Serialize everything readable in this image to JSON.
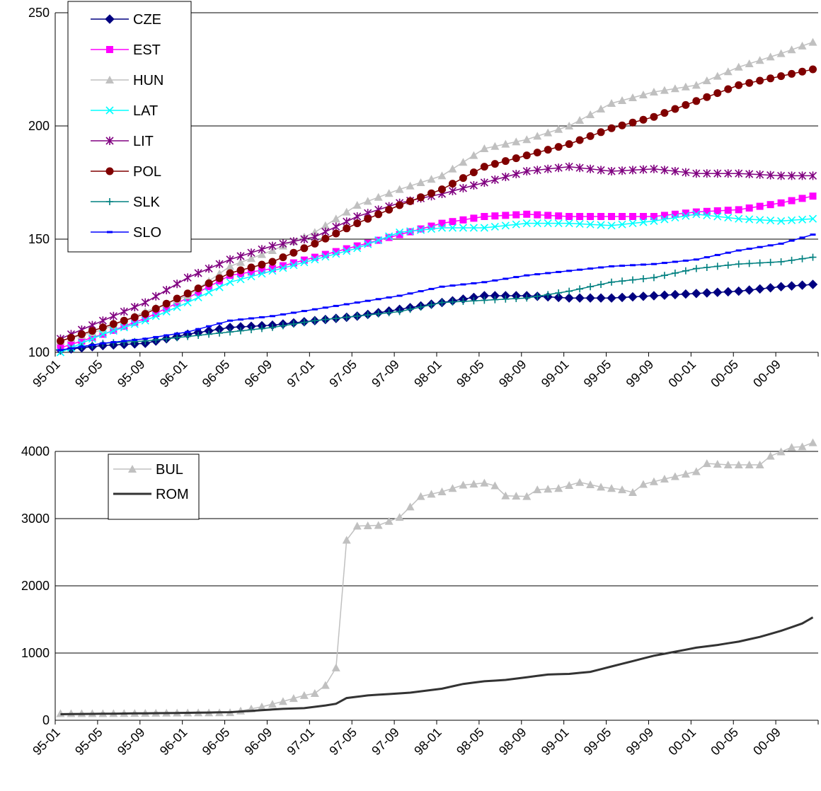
{
  "chart_data": [
    {
      "type": "line",
      "title": "",
      "xlabel": "",
      "ylabel": "",
      "ylim": [
        100,
        250
      ],
      "yticks": [
        100,
        150,
        200,
        250
      ],
      "xtick_labels": [
        "95-01",
        "95-05",
        "95-09",
        "96-01",
        "96-05",
        "96-09",
        "97-01",
        "97-05",
        "97-09",
        "98-01",
        "98-05",
        "98-09",
        "99-01",
        "99-05",
        "99-09",
        "00-01",
        "00-05",
        "00-09"
      ],
      "x_start": "1995-01",
      "x_end": "2000-12",
      "grid": "horizontal",
      "legend_position": "top-left",
      "series": [
        {
          "name": "CZE",
          "color": "#000080",
          "marker": "diamond",
          "anchors": [
            [
              0,
              101
            ],
            [
              4,
              103
            ],
            [
              8,
              104
            ],
            [
              12,
              108
            ],
            [
              16,
              111
            ],
            [
              20,
              112
            ],
            [
              24,
              114
            ],
            [
              28,
              116
            ],
            [
              32,
              119
            ],
            [
              36,
              122
            ],
            [
              40,
              125
            ],
            [
              44,
              125
            ],
            [
              48,
              124
            ],
            [
              52,
              124
            ],
            [
              56,
              125
            ],
            [
              60,
              126
            ],
            [
              64,
              127
            ],
            [
              68,
              129
            ],
            [
              71,
              130
            ]
          ]
        },
        {
          "name": "EST",
          "color": "#FF00FF",
          "marker": "square",
          "anchors": [
            [
              0,
              102
            ],
            [
              4,
              108
            ],
            [
              8,
              115
            ],
            [
              12,
              124
            ],
            [
              16,
              134
            ],
            [
              20,
              137
            ],
            [
              24,
              142
            ],
            [
              28,
              147
            ],
            [
              32,
              152
            ],
            [
              36,
              157
            ],
            [
              40,
              160
            ],
            [
              44,
              161
            ],
            [
              48,
              160
            ],
            [
              52,
              160
            ],
            [
              56,
              160
            ],
            [
              60,
              162
            ],
            [
              64,
              163
            ],
            [
              68,
              166
            ],
            [
              71,
              169
            ]
          ]
        },
        {
          "name": "HUN",
          "color": "#C0C0C0",
          "marker": "triangle",
          "anchors": [
            [
              0,
              105
            ],
            [
              4,
              110
            ],
            [
              8,
              118
            ],
            [
              12,
              125
            ],
            [
              16,
              138
            ],
            [
              20,
              145
            ],
            [
              24,
              153
            ],
            [
              28,
              165
            ],
            [
              32,
              172
            ],
            [
              36,
              178
            ],
            [
              40,
              190
            ],
            [
              44,
              194
            ],
            [
              48,
              200
            ],
            [
              52,
              210
            ],
            [
              56,
              215
            ],
            [
              60,
              218
            ],
            [
              64,
              226
            ],
            [
              68,
              232
            ],
            [
              71,
              237
            ]
          ]
        },
        {
          "name": "LAT",
          "color": "#00FFFF",
          "marker": "x",
          "anchors": [
            [
              0,
              100
            ],
            [
              4,
              108
            ],
            [
              8,
              114
            ],
            [
              12,
              122
            ],
            [
              16,
              131
            ],
            [
              20,
              136
            ],
            [
              24,
              141
            ],
            [
              28,
              146
            ],
            [
              32,
              153
            ],
            [
              36,
              155
            ],
            [
              40,
              155
            ],
            [
              44,
              157
            ],
            [
              48,
              157
            ],
            [
              52,
              156
            ],
            [
              56,
              158
            ],
            [
              60,
              161
            ],
            [
              64,
              159
            ],
            [
              68,
              158
            ],
            [
              71,
              159
            ]
          ]
        },
        {
          "name": "LIT",
          "color": "#800080",
          "marker": "star",
          "anchors": [
            [
              0,
              106
            ],
            [
              4,
              114
            ],
            [
              8,
              122
            ],
            [
              12,
              133
            ],
            [
              16,
              141
            ],
            [
              20,
              147
            ],
            [
              24,
              151
            ],
            [
              28,
              160
            ],
            [
              32,
              166
            ],
            [
              36,
              170
            ],
            [
              40,
              175
            ],
            [
              44,
              180
            ],
            [
              48,
              182
            ],
            [
              52,
              180
            ],
            [
              56,
              181
            ],
            [
              60,
              179
            ],
            [
              64,
              179
            ],
            [
              68,
              178
            ],
            [
              71,
              178
            ]
          ]
        },
        {
          "name": "POL",
          "color": "#800000",
          "marker": "circle",
          "anchors": [
            [
              0,
              105
            ],
            [
              4,
              111
            ],
            [
              8,
              117
            ],
            [
              12,
              126
            ],
            [
              16,
              135
            ],
            [
              20,
              140
            ],
            [
              24,
              148
            ],
            [
              28,
              157
            ],
            [
              32,
              165
            ],
            [
              36,
              172
            ],
            [
              40,
              182
            ],
            [
              44,
              187
            ],
            [
              48,
              192
            ],
            [
              52,
              199
            ],
            [
              56,
              204
            ],
            [
              60,
              211
            ],
            [
              64,
              218
            ],
            [
              68,
              222
            ],
            [
              71,
              225
            ]
          ]
        },
        {
          "name": "SLK",
          "color": "#008080",
          "marker": "plus",
          "anchors": [
            [
              0,
              101
            ],
            [
              4,
              104
            ],
            [
              8,
              105
            ],
            [
              12,
              107
            ],
            [
              16,
              109
            ],
            [
              20,
              111
            ],
            [
              24,
              114
            ],
            [
              28,
              116
            ],
            [
              32,
              118
            ],
            [
              36,
              122
            ],
            [
              40,
              123
            ],
            [
              44,
              124
            ],
            [
              48,
              127
            ],
            [
              52,
              131
            ],
            [
              56,
              133
            ],
            [
              60,
              137
            ],
            [
              64,
              139
            ],
            [
              68,
              140
            ],
            [
              71,
              142
            ]
          ]
        },
        {
          "name": "SLO",
          "color": "#0000FF",
          "marker": "dash",
          "anchors": [
            [
              0,
              101
            ],
            [
              4,
              104
            ],
            [
              8,
              106
            ],
            [
              12,
              109
            ],
            [
              16,
              114
            ],
            [
              20,
              116
            ],
            [
              24,
              119
            ],
            [
              28,
              122
            ],
            [
              32,
              125
            ],
            [
              36,
              129
            ],
            [
              40,
              131
            ],
            [
              44,
              134
            ],
            [
              48,
              136
            ],
            [
              52,
              138
            ],
            [
              56,
              139
            ],
            [
              60,
              141
            ],
            [
              64,
              145
            ],
            [
              68,
              148
            ],
            [
              71,
              152
            ]
          ]
        }
      ]
    },
    {
      "type": "line",
      "title": "",
      "xlabel": "",
      "ylabel": "",
      "ylim": [
        0,
        4000
      ],
      "yticks": [
        0,
        1000,
        2000,
        3000,
        4000
      ],
      "xtick_labels": [
        "95-01",
        "95-05",
        "95-09",
        "96-01",
        "96-05",
        "96-09",
        "97-01",
        "97-05",
        "97-09",
        "98-01",
        "98-05",
        "98-09",
        "99-01",
        "99-05",
        "99-09",
        "00-01",
        "00-05",
        "00-09"
      ],
      "x_start": "1995-01",
      "x_end": "2000-12",
      "grid": "horizontal",
      "legend_position": "top-left",
      "series": [
        {
          "name": "BUL",
          "color": "#C0C0C0",
          "marker": "triangle",
          "anchors": [
            [
              0,
              100
            ],
            [
              4,
              100
            ],
            [
              8,
              105
            ],
            [
              12,
              110
            ],
            [
              16,
              115
            ],
            [
              17,
              140
            ],
            [
              19,
              200
            ],
            [
              21,
              280
            ],
            [
              23,
              370
            ],
            [
              24,
              400
            ],
            [
              25,
              520
            ],
            [
              26,
              780
            ],
            [
              27,
              2680
            ],
            [
              28,
              2890
            ],
            [
              30,
              2900
            ],
            [
              32,
              3020
            ],
            [
              34,
              3330
            ],
            [
              36,
              3400
            ],
            [
              38,
              3500
            ],
            [
              40,
              3530
            ],
            [
              41,
              3490
            ],
            [
              42,
              3340
            ],
            [
              44,
              3330
            ],
            [
              45,
              3430
            ],
            [
              47,
              3450
            ],
            [
              49,
              3540
            ],
            [
              51,
              3470
            ],
            [
              53,
              3430
            ],
            [
              54,
              3390
            ],
            [
              55,
              3510
            ],
            [
              57,
              3590
            ],
            [
              60,
              3700
            ],
            [
              61,
              3820
            ],
            [
              63,
              3800
            ],
            [
              66,
              3800
            ],
            [
              67,
              3930
            ],
            [
              69,
              4060
            ],
            [
              70,
              4070
            ],
            [
              71,
              4130
            ]
          ]
        },
        {
          "name": "ROM",
          "color": "#333333",
          "marker": "none",
          "anchors": [
            [
              0,
              90
            ],
            [
              12,
              110
            ],
            [
              16,
              120
            ],
            [
              19,
              150
            ],
            [
              21,
              170
            ],
            [
              23,
              180
            ],
            [
              25,
              220
            ],
            [
              26,
              245
            ],
            [
              27,
              330
            ],
            [
              29,
              370
            ],
            [
              31,
              390
            ],
            [
              33,
              410
            ],
            [
              36,
              470
            ],
            [
              38,
              540
            ],
            [
              40,
              580
            ],
            [
              42,
              600
            ],
            [
              44,
              640
            ],
            [
              46,
              680
            ],
            [
              48,
              690
            ],
            [
              50,
              720
            ],
            [
              52,
              800
            ],
            [
              54,
              880
            ],
            [
              56,
              960
            ],
            [
              58,
              1020
            ],
            [
              60,
              1080
            ],
            [
              62,
              1120
            ],
            [
              64,
              1170
            ],
            [
              66,
              1240
            ],
            [
              68,
              1330
            ],
            [
              70,
              1440
            ],
            [
              71,
              1530
            ]
          ]
        }
      ]
    }
  ]
}
